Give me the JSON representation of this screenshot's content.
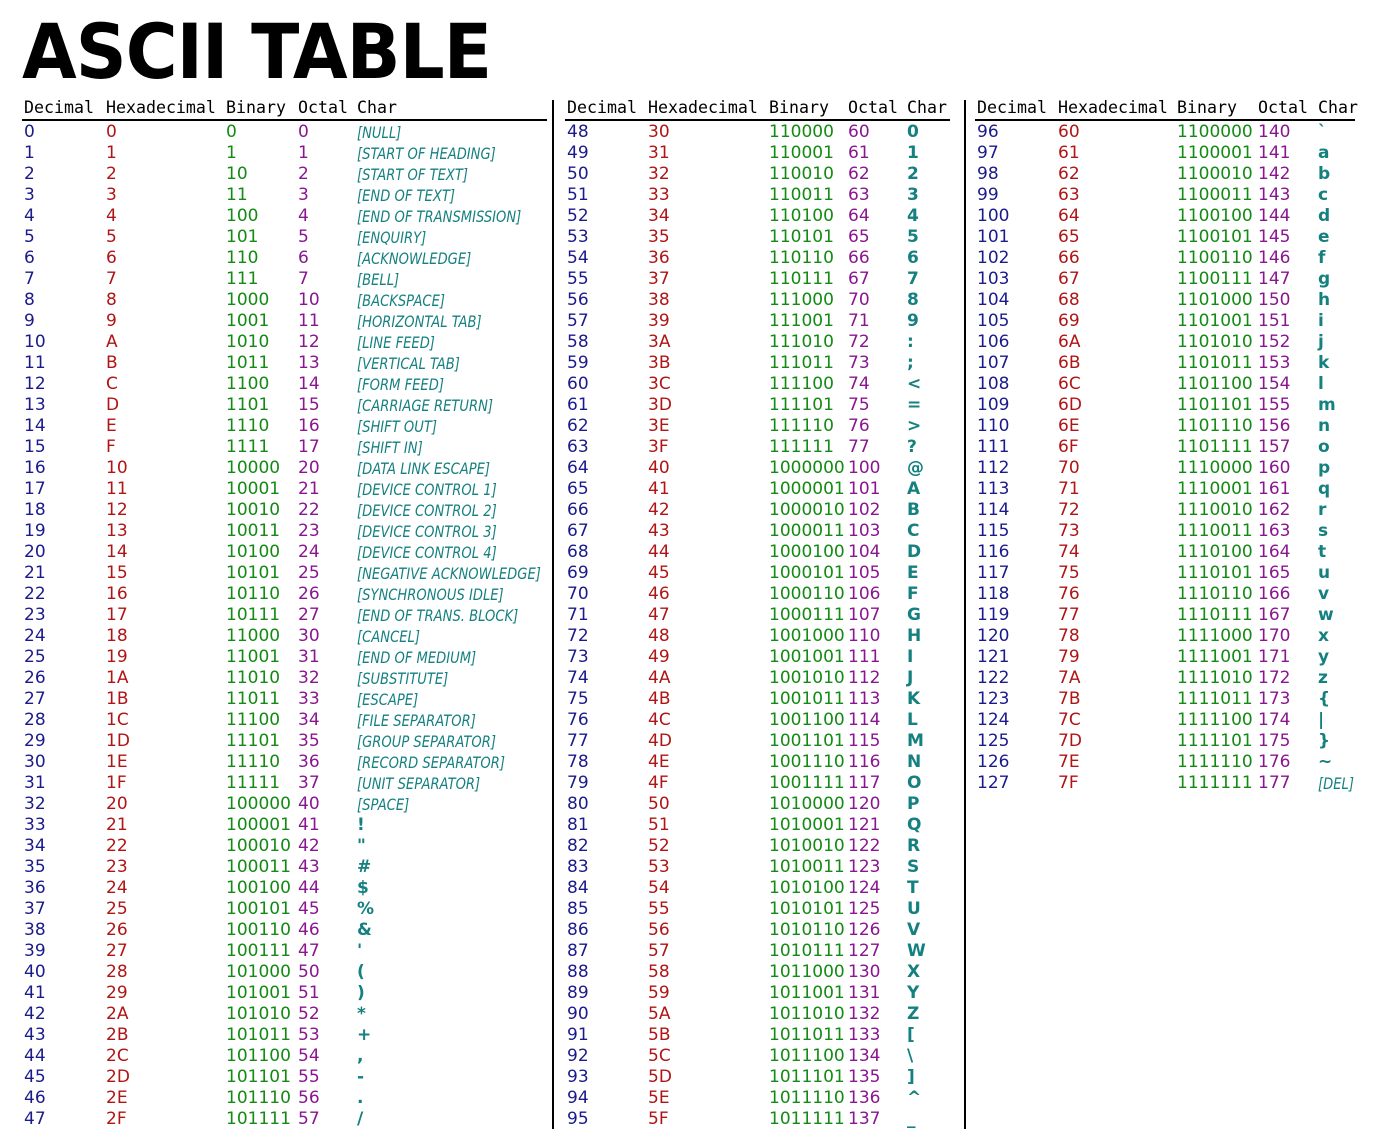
{
  "title": "ASCII TABLE",
  "headers": [
    "Decimal",
    "Hexadecimal",
    "Binary",
    "Octal",
    "Char"
  ],
  "colors": {
    "decimal": "#1a1a8c",
    "hexadecimal": "#b01414",
    "binary": "#138a13",
    "octal": "#8a1590",
    "char": "#158080"
  },
  "sections": [
    {
      "rows": [
        [
          "0",
          "0",
          "0",
          "0",
          "[NULL]"
        ],
        [
          "1",
          "1",
          "1",
          "1",
          "[START OF HEADING]"
        ],
        [
          "2",
          "2",
          "10",
          "2",
          "[START OF TEXT]"
        ],
        [
          "3",
          "3",
          "11",
          "3",
          "[END OF TEXT]"
        ],
        [
          "4",
          "4",
          "100",
          "4",
          "[END OF TRANSMISSION]"
        ],
        [
          "5",
          "5",
          "101",
          "5",
          "[ENQUIRY]"
        ],
        [
          "6",
          "6",
          "110",
          "6",
          "[ACKNOWLEDGE]"
        ],
        [
          "7",
          "7",
          "111",
          "7",
          "[BELL]"
        ],
        [
          "8",
          "8",
          "1000",
          "10",
          "[BACKSPACE]"
        ],
        [
          "9",
          "9",
          "1001",
          "11",
          "[HORIZONTAL TAB]"
        ],
        [
          "10",
          "A",
          "1010",
          "12",
          "[LINE FEED]"
        ],
        [
          "11",
          "B",
          "1011",
          "13",
          "[VERTICAL TAB]"
        ],
        [
          "12",
          "C",
          "1100",
          "14",
          "[FORM FEED]"
        ],
        [
          "13",
          "D",
          "1101",
          "15",
          "[CARRIAGE RETURN]"
        ],
        [
          "14",
          "E",
          "1110",
          "16",
          "[SHIFT OUT]"
        ],
        [
          "15",
          "F",
          "1111",
          "17",
          "[SHIFT IN]"
        ],
        [
          "16",
          "10",
          "10000",
          "20",
          "[DATA LINK ESCAPE]"
        ],
        [
          "17",
          "11",
          "10001",
          "21",
          "[DEVICE CONTROL 1]"
        ],
        [
          "18",
          "12",
          "10010",
          "22",
          "[DEVICE CONTROL 2]"
        ],
        [
          "19",
          "13",
          "10011",
          "23",
          "[DEVICE CONTROL 3]"
        ],
        [
          "20",
          "14",
          "10100",
          "24",
          "[DEVICE CONTROL 4]"
        ],
        [
          "21",
          "15",
          "10101",
          "25",
          "[NEGATIVE ACKNOWLEDGE]"
        ],
        [
          "22",
          "16",
          "10110",
          "26",
          "[SYNCHRONOUS IDLE]"
        ],
        [
          "23",
          "17",
          "10111",
          "27",
          "[END OF TRANS. BLOCK]"
        ],
        [
          "24",
          "18",
          "11000",
          "30",
          "[CANCEL]"
        ],
        [
          "25",
          "19",
          "11001",
          "31",
          "[END OF MEDIUM]"
        ],
        [
          "26",
          "1A",
          "11010",
          "32",
          "[SUBSTITUTE]"
        ],
        [
          "27",
          "1B",
          "11011",
          "33",
          "[ESCAPE]"
        ],
        [
          "28",
          "1C",
          "11100",
          "34",
          "[FILE SEPARATOR]"
        ],
        [
          "29",
          "1D",
          "11101",
          "35",
          "[GROUP SEPARATOR]"
        ],
        [
          "30",
          "1E",
          "11110",
          "36",
          "[RECORD SEPARATOR]"
        ],
        [
          "31",
          "1F",
          "11111",
          "37",
          "[UNIT SEPARATOR]"
        ],
        [
          "32",
          "20",
          "100000",
          "40",
          "[SPACE]"
        ],
        [
          "33",
          "21",
          "100001",
          "41",
          "!"
        ],
        [
          "34",
          "22",
          "100010",
          "42",
          "\""
        ],
        [
          "35",
          "23",
          "100011",
          "43",
          "#"
        ],
        [
          "36",
          "24",
          "100100",
          "44",
          "$"
        ],
        [
          "37",
          "25",
          "100101",
          "45",
          "%"
        ],
        [
          "38",
          "26",
          "100110",
          "46",
          "&"
        ],
        [
          "39",
          "27",
          "100111",
          "47",
          "'"
        ],
        [
          "40",
          "28",
          "101000",
          "50",
          "("
        ],
        [
          "41",
          "29",
          "101001",
          "51",
          ")"
        ],
        [
          "42",
          "2A",
          "101010",
          "52",
          "*"
        ],
        [
          "43",
          "2B",
          "101011",
          "53",
          "+"
        ],
        [
          "44",
          "2C",
          "101100",
          "54",
          ","
        ],
        [
          "45",
          "2D",
          "101101",
          "55",
          "-"
        ],
        [
          "46",
          "2E",
          "101110",
          "56",
          "."
        ],
        [
          "47",
          "2F",
          "101111",
          "57",
          "/"
        ]
      ]
    },
    {
      "rows": [
        [
          "48",
          "30",
          "110000",
          "60",
          "0"
        ],
        [
          "49",
          "31",
          "110001",
          "61",
          "1"
        ],
        [
          "50",
          "32",
          "110010",
          "62",
          "2"
        ],
        [
          "51",
          "33",
          "110011",
          "63",
          "3"
        ],
        [
          "52",
          "34",
          "110100",
          "64",
          "4"
        ],
        [
          "53",
          "35",
          "110101",
          "65",
          "5"
        ],
        [
          "54",
          "36",
          "110110",
          "66",
          "6"
        ],
        [
          "55",
          "37",
          "110111",
          "67",
          "7"
        ],
        [
          "56",
          "38",
          "111000",
          "70",
          "8"
        ],
        [
          "57",
          "39",
          "111001",
          "71",
          "9"
        ],
        [
          "58",
          "3A",
          "111010",
          "72",
          ":"
        ],
        [
          "59",
          "3B",
          "111011",
          "73",
          ";"
        ],
        [
          "60",
          "3C",
          "111100",
          "74",
          "<"
        ],
        [
          "61",
          "3D",
          "111101",
          "75",
          "="
        ],
        [
          "62",
          "3E",
          "111110",
          "76",
          ">"
        ],
        [
          "63",
          "3F",
          "111111",
          "77",
          "?"
        ],
        [
          "64",
          "40",
          "1000000",
          "100",
          "@"
        ],
        [
          "65",
          "41",
          "1000001",
          "101",
          "A"
        ],
        [
          "66",
          "42",
          "1000010",
          "102",
          "B"
        ],
        [
          "67",
          "43",
          "1000011",
          "103",
          "C"
        ],
        [
          "68",
          "44",
          "1000100",
          "104",
          "D"
        ],
        [
          "69",
          "45",
          "1000101",
          "105",
          "E"
        ],
        [
          "70",
          "46",
          "1000110",
          "106",
          "F"
        ],
        [
          "71",
          "47",
          "1000111",
          "107",
          "G"
        ],
        [
          "72",
          "48",
          "1001000",
          "110",
          "H"
        ],
        [
          "73",
          "49",
          "1001001",
          "111",
          "I"
        ],
        [
          "74",
          "4A",
          "1001010",
          "112",
          "J"
        ],
        [
          "75",
          "4B",
          "1001011",
          "113",
          "K"
        ],
        [
          "76",
          "4C",
          "1001100",
          "114",
          "L"
        ],
        [
          "77",
          "4D",
          "1001101",
          "115",
          "M"
        ],
        [
          "78",
          "4E",
          "1001110",
          "116",
          "N"
        ],
        [
          "79",
          "4F",
          "1001111",
          "117",
          "O"
        ],
        [
          "80",
          "50",
          "1010000",
          "120",
          "P"
        ],
        [
          "81",
          "51",
          "1010001",
          "121",
          "Q"
        ],
        [
          "82",
          "52",
          "1010010",
          "122",
          "R"
        ],
        [
          "83",
          "53",
          "1010011",
          "123",
          "S"
        ],
        [
          "84",
          "54",
          "1010100",
          "124",
          "T"
        ],
        [
          "85",
          "55",
          "1010101",
          "125",
          "U"
        ],
        [
          "86",
          "56",
          "1010110",
          "126",
          "V"
        ],
        [
          "87",
          "57",
          "1010111",
          "127",
          "W"
        ],
        [
          "88",
          "58",
          "1011000",
          "130",
          "X"
        ],
        [
          "89",
          "59",
          "1011001",
          "131",
          "Y"
        ],
        [
          "90",
          "5A",
          "1011010",
          "132",
          "Z"
        ],
        [
          "91",
          "5B",
          "1011011",
          "133",
          "["
        ],
        [
          "92",
          "5C",
          "1011100",
          "134",
          "\\"
        ],
        [
          "93",
          "5D",
          "1011101",
          "135",
          "]"
        ],
        [
          "94",
          "5E",
          "1011110",
          "136",
          "^"
        ],
        [
          "95",
          "5F",
          "1011111",
          "137",
          "_"
        ]
      ]
    },
    {
      "rows": [
        [
          "96",
          "60",
          "1100000",
          "140",
          "`"
        ],
        [
          "97",
          "61",
          "1100001",
          "141",
          "a"
        ],
        [
          "98",
          "62",
          "1100010",
          "142",
          "b"
        ],
        [
          "99",
          "63",
          "1100011",
          "143",
          "c"
        ],
        [
          "100",
          "64",
          "1100100",
          "144",
          "d"
        ],
        [
          "101",
          "65",
          "1100101",
          "145",
          "e"
        ],
        [
          "102",
          "66",
          "1100110",
          "146",
          "f"
        ],
        [
          "103",
          "67",
          "1100111",
          "147",
          "g"
        ],
        [
          "104",
          "68",
          "1101000",
          "150",
          "h"
        ],
        [
          "105",
          "69",
          "1101001",
          "151",
          "i"
        ],
        [
          "106",
          "6A",
          "1101010",
          "152",
          "j"
        ],
        [
          "107",
          "6B",
          "1101011",
          "153",
          "k"
        ],
        [
          "108",
          "6C",
          "1101100",
          "154",
          "l"
        ],
        [
          "109",
          "6D",
          "1101101",
          "155",
          "m"
        ],
        [
          "110",
          "6E",
          "1101110",
          "156",
          "n"
        ],
        [
          "111",
          "6F",
          "1101111",
          "157",
          "o"
        ],
        [
          "112",
          "70",
          "1110000",
          "160",
          "p"
        ],
        [
          "113",
          "71",
          "1110001",
          "161",
          "q"
        ],
        [
          "114",
          "72",
          "1110010",
          "162",
          "r"
        ],
        [
          "115",
          "73",
          "1110011",
          "163",
          "s"
        ],
        [
          "116",
          "74",
          "1110100",
          "164",
          "t"
        ],
        [
          "117",
          "75",
          "1110101",
          "165",
          "u"
        ],
        [
          "118",
          "76",
          "1110110",
          "166",
          "v"
        ],
        [
          "119",
          "77",
          "1110111",
          "167",
          "w"
        ],
        [
          "120",
          "78",
          "1111000",
          "170",
          "x"
        ],
        [
          "121",
          "79",
          "1111001",
          "171",
          "y"
        ],
        [
          "122",
          "7A",
          "1111010",
          "172",
          "z"
        ],
        [
          "123",
          "7B",
          "1111011",
          "173",
          "{"
        ],
        [
          "124",
          "7C",
          "1111100",
          "174",
          "|"
        ],
        [
          "125",
          "7D",
          "1111101",
          "175",
          "}"
        ],
        [
          "126",
          "7E",
          "1111110",
          "176",
          "~"
        ],
        [
          "127",
          "7F",
          "1111111",
          "177",
          "[DEL]"
        ]
      ]
    }
  ]
}
